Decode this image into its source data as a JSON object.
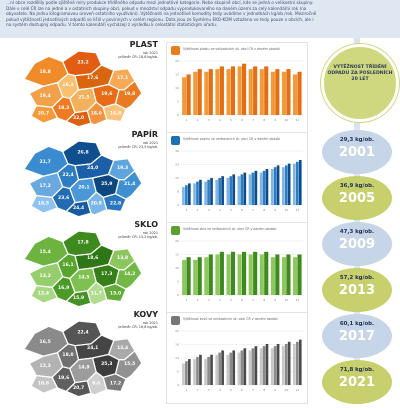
{
  "intro": {
    "text": "…ní obce rozdělily podle zjištěné míry produkce tříděného odpadu mezi jednotlivé kategorie. Nebo skupině obcí, kde se jedná o velikostní skupiny. Dále v celé ČR lze na jedné a v ostatních skupiny obcí, pokud v množství odpadu vyprodukovaného na daném území za celý kalendářní rok (na obyvatele. Na jednu kilogramovou úroveň ostatního využívání). Výtěžnosti na jednotlivé komodity tedy uvádíme v jednotkách kg/ob./rok. Meziročně pokud výtěžnosti jednotlivých odpadů se lišili v povinných v celém regionu. Data jsou ze Systému EKO-KOM vztažena ve tedy pouze v obcích, ale i na systém dostupný odpadu. V tomto kalendáři vycházejí z výsledku k celostátní statistickým úřadu."
  },
  "sections": [
    {
      "key": "plast",
      "title": "PLAST",
      "sub1": "rok 2021",
      "sub2": "průměr ČR: 18,8 kg/ob.",
      "chart_title": "Výtěžnost plastu ve velikostních sk. obcí ČR v daném období",
      "icon_color": "#e97f1a",
      "map_colors": [
        "#f08b2a",
        "#e25c12",
        "#f2a04a",
        "#fbbf6e",
        "#d9650f",
        "#f59a3a",
        "#ee7a22",
        "#f4b15c",
        "#e86c17",
        "#f6aa55",
        "#dd5f10",
        "#f29340",
        "#fbc27a",
        "#e97a22"
      ],
      "map_labels": [
        "18,8",
        "23,2",
        "19,4",
        "16,3",
        "17,6",
        "20,7",
        "18,3",
        "21,5",
        "19,6",
        "17,1",
        "22,0",
        "18,0",
        "16,8",
        "19,8"
      ]
    },
    {
      "key": "papir",
      "title": "PAPÍR",
      "sub1": "rok 2021",
      "sub2": "průměr ČR: 23,5 kg/ob.",
      "chart_title": "Výtěžnost papíru ve velikostních sk. obcí ČR v daném období",
      "icon_color": "#1f6fb5",
      "map_colors": [
        "#3a8bd0",
        "#0f4f8f",
        "#6aa9e0",
        "#2d7cc4",
        "#1a5fa8",
        "#8ec2ef",
        "#216cb4",
        "#4b98d8",
        "#0d477f",
        "#5ea4dd",
        "#185a9f",
        "#7ab6e8",
        "#2a77bf",
        "#3f8fd3"
      ],
      "map_labels": [
        "21,7",
        "26,8",
        "17,2",
        "22,4",
        "24,0",
        "18,5",
        "23,6",
        "20,1",
        "25,9",
        "19,3",
        "24,4",
        "20,9",
        "22,8",
        "21,4"
      ]
    },
    {
      "key": "sklo",
      "title": "SKLO",
      "sub1": "rok 2021",
      "sub2": "průměr ČR: 15,2 kg/ob.",
      "chart_title": "Výtěžnost skla ve velikostních sk. obcí ČR v daném období",
      "icon_color": "#5aa02c",
      "map_colors": [
        "#6cb33f",
        "#3f8a1f",
        "#96cd6d",
        "#58a52e",
        "#2f7716",
        "#a8d883",
        "#4d9a27",
        "#7fc150",
        "#357f19",
        "#8cc65f",
        "#449124",
        "#b2dc8f",
        "#62ad37",
        "#73b845"
      ],
      "map_labels": [
        "15,4",
        "17,8",
        "13,2",
        "16,1",
        "18,6",
        "12,4",
        "16,9",
        "14,5",
        "17,3",
        "13,8",
        "15,9",
        "11,7",
        "15,0",
        "14,2"
      ]
    },
    {
      "key": "kovy",
      "title": "KOVY",
      "sub1": "rok 2021",
      "sub2": "průměr ČR: 16,8 kg/ob.",
      "chart_title": "Výtěžnost kovů ve velikostních sk. obcí ČR v daném období",
      "icon_color": "#777777",
      "map_colors": [
        "#8a8a8a",
        "#555555",
        "#b3b3b3",
        "#707070",
        "#454545",
        "#c4c4c4",
        "#606060",
        "#9c9c9c",
        "#3d3d3d",
        "#a9a9a9",
        "#575757",
        "#cfcfcf",
        "#7b7b7b",
        "#929292"
      ],
      "map_labels": [
        "16,5",
        "22,4",
        "12,3",
        "18,0",
        "24,1",
        "10,8",
        "19,6",
        "14,9",
        "25,3",
        "13,4",
        "20,7",
        "9,6",
        "17,2",
        "15,5"
      ]
    }
  ],
  "right": {
    "heading": "VÝTĚŽNOST TŘÍDĚNÍ ODPADU ZA POSLEDNÍCH 20 LET",
    "years": [
      {
        "value": "29,3 kg/ob.",
        "year": "2001",
        "style": "b"
      },
      {
        "value": "36,9 kg/ob.",
        "year": "2005",
        "style": "g"
      },
      {
        "value": "47,3 kg/ob.",
        "year": "2009",
        "style": "b"
      },
      {
        "value": "57,2 kg/ob.",
        "year": "2013",
        "style": "g"
      },
      {
        "value": "60,1 kg/ob.",
        "year": "2017",
        "style": "b"
      },
      {
        "value": "71,8 kg/ob.",
        "year": "2021",
        "style": "g"
      }
    ]
  },
  "chart_data": [
    {
      "type": "bar",
      "title": "Výtěžnost plastu ve velikostních sk. obcí ČR v daném období",
      "categories": [
        "1",
        "2",
        "3",
        "4",
        "5",
        "6",
        "7",
        "8",
        "9",
        "10",
        "11"
      ],
      "series": [
        {
          "values": [
            14,
            16,
            16,
            17,
            17,
            18,
            17,
            17,
            16,
            16,
            15
          ]
        },
        {
          "values": [
            15,
            17,
            17,
            18,
            18,
            19,
            18,
            18,
            17,
            17,
            16
          ]
        }
      ],
      "ylim": [
        0,
        20
      ],
      "colors": [
        "#f29a3a",
        "#e36f14"
      ]
    },
    {
      "type": "bar",
      "title": "Výtěžnost papíru ve velikostních sk. obcí ČR v daném období",
      "categories": [
        "1",
        "2",
        "3",
        "4",
        "5",
        "6",
        "7",
        "8",
        "9",
        "10",
        "11"
      ],
      "series": [
        {
          "values": [
            10,
            12,
            13,
            14,
            15,
            16,
            17,
            18,
            20,
            21,
            23
          ]
        },
        {
          "values": [
            11,
            13,
            14,
            15,
            16,
            17,
            18,
            19,
            21,
            22,
            24
          ]
        },
        {
          "values": [
            12,
            14,
            15,
            16,
            17,
            18,
            19,
            20,
            22,
            23,
            25
          ]
        }
      ],
      "ylim": [
        0,
        30
      ],
      "colors": [
        "#7fb6e6",
        "#2e7cc4",
        "#0d4c8a"
      ]
    },
    {
      "type": "bar",
      "title": "Výtěžnost skla ve velikostních sk. obcí ČR v daném období",
      "categories": [
        "1",
        "2",
        "3",
        "4",
        "5",
        "6",
        "7",
        "8",
        "9",
        "10",
        "11"
      ],
      "series": [
        {
          "values": [
            13,
            13,
            14,
            15,
            15,
            15,
            15,
            15,
            14,
            14,
            14
          ]
        },
        {
          "values": [
            14,
            14,
            15,
            16,
            16,
            16,
            16,
            16,
            15,
            15,
            15
          ]
        }
      ],
      "ylim": [
        0,
        20
      ],
      "colors": [
        "#8cc85c",
        "#3f8a1f"
      ]
    },
    {
      "type": "bar",
      "title": "Výtěžnost kovů ve velikostních sk. obcí ČR v daném období",
      "categories": [
        "1",
        "2",
        "3",
        "4",
        "5",
        "6",
        "7",
        "8",
        "9",
        "10",
        "11"
      ],
      "series": [
        {
          "values": [
            10,
            12,
            12,
            14,
            14,
            15,
            16,
            17,
            17,
            18,
            19
          ]
        },
        {
          "values": [
            11,
            13,
            13,
            15,
            15,
            16,
            17,
            18,
            18,
            19,
            20
          ]
        },
        {
          "values": [
            12,
            14,
            14,
            16,
            16,
            17,
            18,
            19,
            19,
            20,
            21
          ]
        }
      ],
      "ylim": [
        0,
        25
      ],
      "colors": [
        "#c8c8c8",
        "#8a8a8a",
        "#4a4a4a"
      ]
    }
  ]
}
